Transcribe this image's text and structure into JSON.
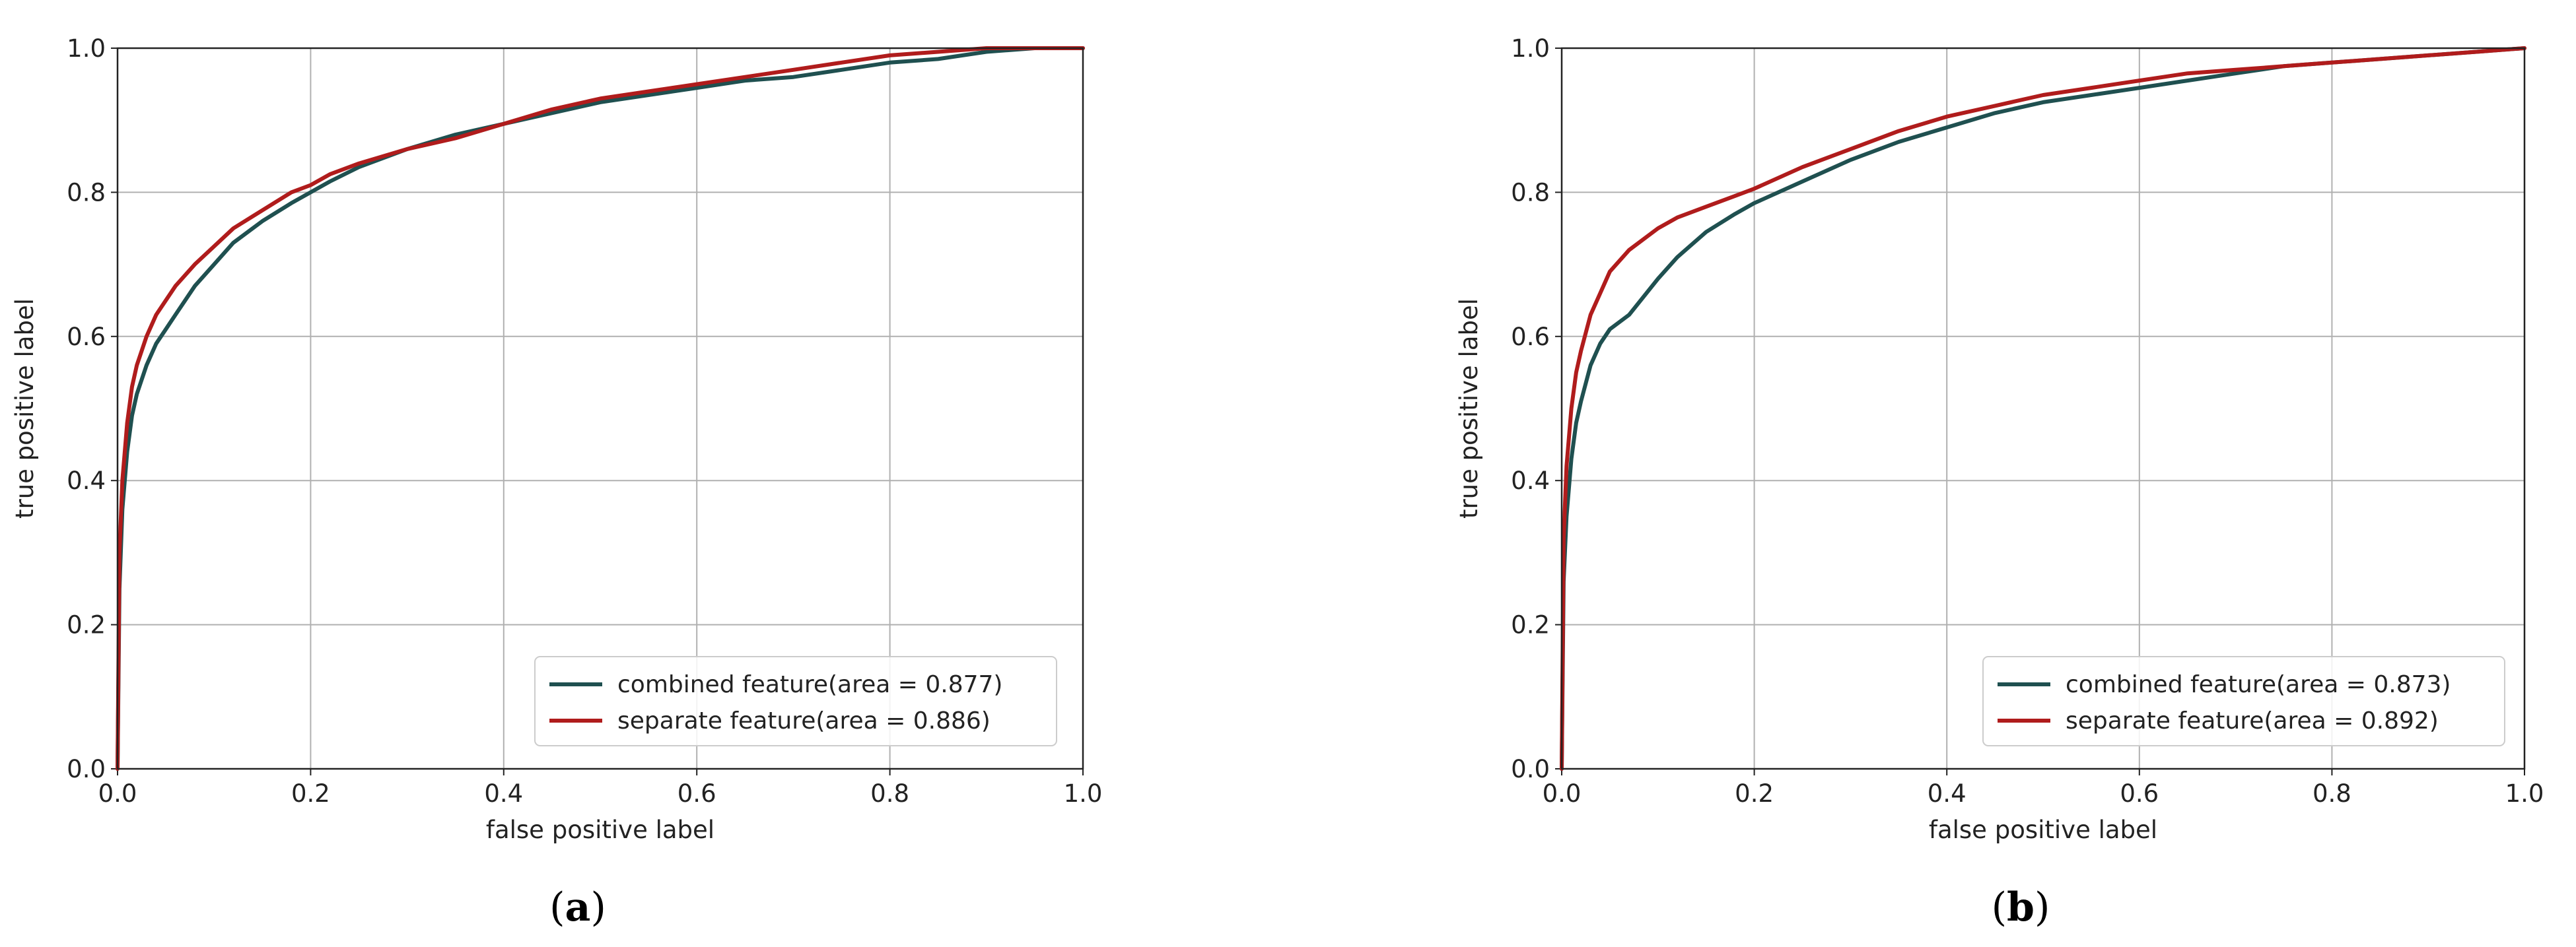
{
  "chart_data": [
    {
      "type": "line",
      "caption_open": "(",
      "caption_letter": "a",
      "caption_close": ")",
      "xlabel": "false positive label",
      "ylabel": "true positive label",
      "xlim": [
        0.0,
        1.0
      ],
      "ylim": [
        0.0,
        1.0
      ],
      "xticks": [
        "0.0",
        "0.2",
        "0.4",
        "0.6",
        "0.8",
        "1.0"
      ],
      "yticks": [
        "0.0",
        "0.2",
        "0.4",
        "0.6",
        "0.8",
        "1.0"
      ],
      "grid": true,
      "legend_position": "lower-right",
      "series": [
        {
          "name": "combined feature(area = 0.877)",
          "color": "#1f5050",
          "x": [
            0.0,
            0.002,
            0.005,
            0.01,
            0.015,
            0.02,
            0.03,
            0.04,
            0.05,
            0.06,
            0.08,
            0.1,
            0.12,
            0.15,
            0.18,
            0.2,
            0.22,
            0.25,
            0.3,
            0.35,
            0.4,
            0.45,
            0.5,
            0.55,
            0.6,
            0.65,
            0.7,
            0.75,
            0.8,
            0.85,
            0.9,
            0.95,
            1.0
          ],
          "y": [
            0.0,
            0.25,
            0.36,
            0.44,
            0.49,
            0.52,
            0.56,
            0.59,
            0.61,
            0.63,
            0.67,
            0.7,
            0.73,
            0.76,
            0.785,
            0.8,
            0.815,
            0.835,
            0.86,
            0.88,
            0.895,
            0.91,
            0.925,
            0.935,
            0.945,
            0.955,
            0.96,
            0.97,
            0.98,
            0.985,
            0.995,
            1.0,
            1.0
          ]
        },
        {
          "name": "separate feature(area = 0.886)",
          "color": "#b01c1c",
          "x": [
            0.0,
            0.002,
            0.005,
            0.01,
            0.015,
            0.02,
            0.03,
            0.04,
            0.05,
            0.06,
            0.08,
            0.1,
            0.12,
            0.15,
            0.18,
            0.2,
            0.22,
            0.25,
            0.3,
            0.35,
            0.4,
            0.45,
            0.5,
            0.55,
            0.6,
            0.65,
            0.7,
            0.75,
            0.8,
            0.85,
            0.9,
            0.95,
            1.0
          ],
          "y": [
            0.0,
            0.3,
            0.4,
            0.48,
            0.53,
            0.56,
            0.6,
            0.63,
            0.65,
            0.67,
            0.7,
            0.725,
            0.75,
            0.775,
            0.8,
            0.81,
            0.825,
            0.84,
            0.86,
            0.875,
            0.895,
            0.915,
            0.93,
            0.94,
            0.95,
            0.96,
            0.97,
            0.98,
            0.99,
            0.995,
            1.0,
            1.0,
            1.0
          ]
        }
      ]
    },
    {
      "type": "line",
      "caption_open": "(",
      "caption_letter": "b",
      "caption_close": ")",
      "xlabel": "false positive label",
      "ylabel": "true positive label",
      "xlim": [
        0.0,
        1.0
      ],
      "ylim": [
        0.0,
        1.0
      ],
      "xticks": [
        "0.0",
        "0.2",
        "0.4",
        "0.6",
        "0.8",
        "1.0"
      ],
      "yticks": [
        "0.0",
        "0.2",
        "0.4",
        "0.6",
        "0.8",
        "1.0"
      ],
      "grid": true,
      "legend_position": "lower-right",
      "series": [
        {
          "name": "combined feature(area = 0.873)",
          "color": "#1f5050",
          "x": [
            0.0,
            0.002,
            0.005,
            0.01,
            0.015,
            0.02,
            0.03,
            0.04,
            0.05,
            0.07,
            0.1,
            0.12,
            0.15,
            0.18,
            0.2,
            0.25,
            0.3,
            0.35,
            0.4,
            0.45,
            0.5,
            0.55,
            0.6,
            0.65,
            0.7,
            0.75,
            0.8,
            0.85,
            0.9,
            0.95,
            1.0
          ],
          "y": [
            0.0,
            0.26,
            0.35,
            0.43,
            0.48,
            0.51,
            0.56,
            0.59,
            0.61,
            0.63,
            0.68,
            0.71,
            0.745,
            0.77,
            0.785,
            0.815,
            0.845,
            0.87,
            0.89,
            0.91,
            0.925,
            0.935,
            0.945,
            0.955,
            0.965,
            0.975,
            0.98,
            0.985,
            0.99,
            0.995,
            1.0
          ]
        },
        {
          "name": "separate feature(area = 0.892)",
          "color": "#b01c1c",
          "x": [
            0.0,
            0.002,
            0.005,
            0.01,
            0.015,
            0.02,
            0.03,
            0.04,
            0.05,
            0.07,
            0.1,
            0.12,
            0.15,
            0.18,
            0.2,
            0.25,
            0.3,
            0.35,
            0.4,
            0.45,
            0.5,
            0.55,
            0.6,
            0.65,
            0.7,
            0.75,
            0.8,
            0.85,
            0.9,
            0.95,
            1.0
          ],
          "y": [
            0.0,
            0.32,
            0.42,
            0.5,
            0.55,
            0.58,
            0.63,
            0.66,
            0.69,
            0.72,
            0.75,
            0.765,
            0.78,
            0.795,
            0.805,
            0.835,
            0.86,
            0.885,
            0.905,
            0.92,
            0.935,
            0.945,
            0.955,
            0.965,
            0.97,
            0.975,
            0.98,
            0.985,
            0.99,
            0.995,
            1.0
          ]
        }
      ]
    }
  ]
}
